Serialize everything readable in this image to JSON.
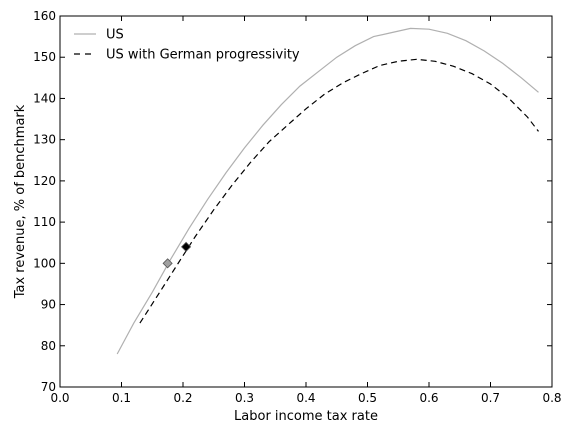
{
  "chart_data": {
    "type": "line",
    "title": "",
    "xlabel": "Labor income tax rate",
    "ylabel": "Tax revenue, % of benchmark",
    "xlim": [
      0.0,
      0.8
    ],
    "ylim": [
      70,
      160
    ],
    "xticks": [
      0.0,
      0.1,
      0.2,
      0.3,
      0.4,
      0.5,
      0.6,
      0.7,
      0.8
    ],
    "xtick_labels": [
      "0.0",
      "0.1",
      "0.2",
      "0.3",
      "0.4",
      "0.5",
      "0.6",
      "0.7",
      "0.8"
    ],
    "yticks": [
      70,
      80,
      90,
      100,
      110,
      120,
      130,
      140,
      150,
      160
    ],
    "ytick_labels": [
      "70",
      "80",
      "90",
      "100",
      "110",
      "120",
      "130",
      "140",
      "150",
      "160"
    ],
    "grid": false,
    "legend_position": "top-left",
    "series": [
      {
        "name": "US",
        "style": "solid",
        "color": "#b0b0b0",
        "x": [
          0.093,
          0.12,
          0.15,
          0.18,
          0.21,
          0.24,
          0.27,
          0.3,
          0.33,
          0.36,
          0.39,
          0.42,
          0.45,
          0.48,
          0.51,
          0.54,
          0.57,
          0.6,
          0.63,
          0.66,
          0.69,
          0.72,
          0.75,
          0.778
        ],
        "y": [
          78,
          85.5,
          93,
          101,
          108.5,
          115.5,
          122,
          128,
          133.5,
          138.5,
          143,
          146.5,
          150,
          152.8,
          155,
          156,
          157,
          156.8,
          155.8,
          154,
          151.5,
          148.5,
          145,
          141.5
        ]
      },
      {
        "name": "US with German progressivity",
        "style": "dashed",
        "color": "#000000",
        "x": [
          0.13,
          0.16,
          0.19,
          0.22,
          0.25,
          0.28,
          0.31,
          0.34,
          0.37,
          0.4,
          0.43,
          0.46,
          0.49,
          0.52,
          0.55,
          0.58,
          0.61,
          0.64,
          0.67,
          0.7,
          0.73,
          0.76,
          0.778
        ],
        "y": [
          85.5,
          92.5,
          99.5,
          106.5,
          113,
          119,
          124.5,
          129.5,
          133.5,
          137.5,
          141,
          143.8,
          146,
          148,
          149,
          149.5,
          149,
          147.8,
          146,
          143.5,
          140,
          135.5,
          132
        ]
      }
    ],
    "markers": [
      {
        "series": "US",
        "x": 0.175,
        "y": 100,
        "shape": "diamond",
        "color": "#a0a0a0"
      },
      {
        "series": "US with German progressivity",
        "x": 0.205,
        "y": 104,
        "shape": "diamond",
        "color": "#000000"
      }
    ]
  }
}
